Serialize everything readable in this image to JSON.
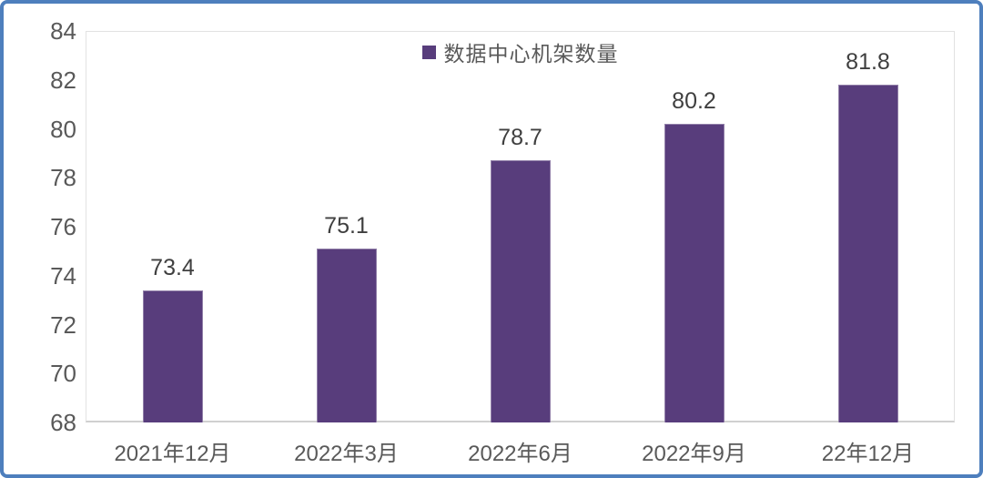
{
  "colors": {
    "bar": "#583d7c",
    "frame_border": "#4e7fbd",
    "axis_text": "#595959",
    "value_text": "#3f3f3f",
    "plot_border": "#e2e2e2"
  },
  "legend": {
    "label": "数据中心机架数量"
  },
  "chart_data": {
    "type": "bar",
    "title": "",
    "categories": [
      "2021年12月",
      "2022年3月",
      "2022年6月",
      "2022年9月",
      "22年12月"
    ],
    "series": [
      {
        "name": "数据中心机架数量",
        "values": [
          73.4,
          75.1,
          78.7,
          80.2,
          81.8
        ]
      }
    ],
    "value_labels": [
      "73.4",
      "75.1",
      "78.7",
      "80.2",
      "81.8"
    ],
    "xlabel": "",
    "ylabel": "",
    "ylim": [
      68,
      84
    ],
    "yticks": [
      68,
      70,
      72,
      74,
      76,
      78,
      80,
      82,
      84
    ],
    "grid": false,
    "legend_position": "top-center"
  }
}
